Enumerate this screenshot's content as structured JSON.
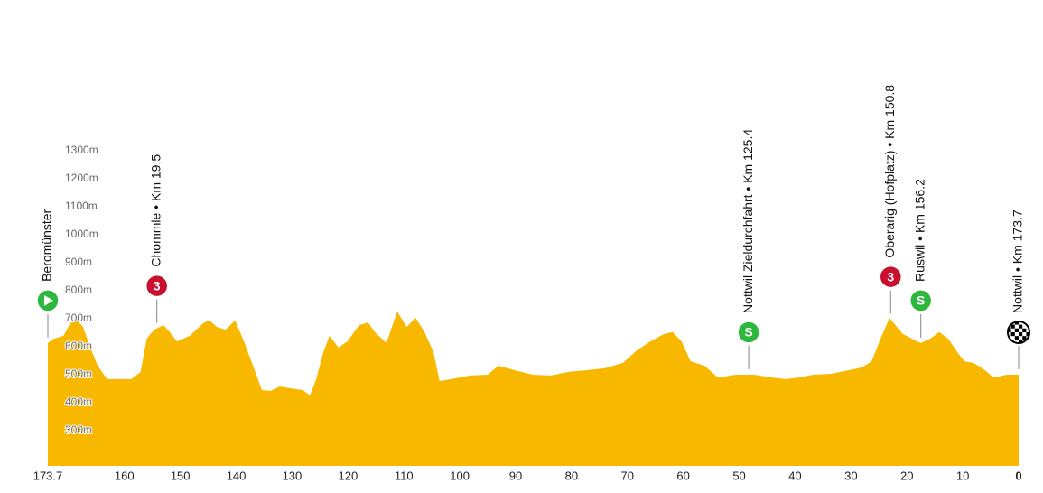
{
  "chart_data": {
    "type": "area",
    "color": "#f9b800",
    "x": [
      173.7,
      172.6,
      170.9,
      169.7,
      168.5,
      167.4,
      166.1,
      164.8,
      163.1,
      161.3,
      158.8,
      157.1,
      156.0,
      154.7,
      153.0,
      151.9,
      150.6,
      148.3,
      145.9,
      144.8,
      143.5,
      141.9,
      140.2,
      138.6,
      137.0,
      135.4,
      133.8,
      132.2,
      130.6,
      128.1,
      126.8,
      125.7,
      124.4,
      123.3,
      121.7,
      120.1,
      118.0,
      116.4,
      115.2,
      113.1,
      111.2,
      109.5,
      107.9,
      106.3,
      104.7,
      103.6,
      101.5,
      98.2,
      95.0,
      93.1,
      90.2,
      86.9,
      83.7,
      80.5,
      77.2,
      74.0,
      70.8,
      68.3,
      65.9,
      63.5,
      61.9,
      60.3,
      58.7,
      56.2,
      53.8,
      50.6,
      47.3,
      44.1,
      41.7,
      39.3,
      36.8,
      33.6,
      30.4,
      28.0,
      26.3,
      24.7,
      23.1,
      21.8,
      20.7,
      19.1,
      17.5,
      15.8,
      14.2,
      12.6,
      11.0,
      9.7,
      8.1,
      6.5,
      4.5,
      2.1,
      0
    ],
    "values": [
      613,
      629,
      639,
      684,
      694,
      671,
      597,
      532,
      484,
      484,
      484,
      510,
      629,
      661,
      677,
      652,
      619,
      639,
      684,
      694,
      671,
      661,
      694,
      619,
      532,
      445,
      442,
      458,
      452,
      445,
      426,
      484,
      581,
      639,
      597,
      619,
      677,
      687,
      652,
      613,
      726,
      671,
      703,
      652,
      581,
      477,
      484,
      497,
      500,
      532,
      516,
      500,
      497,
      510,
      516,
      523,
      542,
      587,
      619,
      645,
      652,
      619,
      548,
      532,
      490,
      500,
      500,
      490,
      484,
      490,
      500,
      503,
      516,
      526,
      548,
      629,
      703,
      671,
      645,
      629,
      613,
      629,
      652,
      629,
      581,
      548,
      542,
      523,
      490,
      500,
      500
    ],
    "xlim": [
      173.7,
      0
    ],
    "xticks": [
      173.7,
      160,
      150,
      140,
      130,
      120,
      110,
      100,
      90,
      80,
      70,
      60,
      50,
      40,
      30,
      20,
      10,
      0
    ],
    "ylim": [
      174,
      1300
    ],
    "yticks": [
      {
        "value": 300,
        "label": "300m"
      },
      {
        "value": 400,
        "label": "400m"
      },
      {
        "value": 500,
        "label": "500m"
      },
      {
        "value": 600,
        "label": "600m"
      },
      {
        "value": 700,
        "label": "700m"
      },
      {
        "value": 800,
        "label": "800m"
      },
      {
        "value": 900,
        "label": "900m"
      },
      {
        "value": 1000,
        "label": "1000m"
      },
      {
        "value": 1100,
        "label": "1100m"
      },
      {
        "value": 1200,
        "label": "1200m"
      },
      {
        "value": 1300,
        "label": "1300m"
      }
    ],
    "markers": [
      {
        "label": "Beromünster",
        "x": 173.7,
        "kind": "start",
        "color": "#2db83d"
      },
      {
        "label": "Chommle • Km 19.5",
        "x": 154.2,
        "kind": "badge",
        "badge": "3",
        "color": "#c8102e"
      },
      {
        "label": "Nottwil Zieldurchfahrt • Km 125.4",
        "x": 48.3,
        "kind": "badge",
        "badge": "S",
        "color": "#2db83d"
      },
      {
        "label": "Oberarig (Hofplatz) • Km 150.8",
        "x": 22.9,
        "kind": "badge",
        "badge": "3",
        "color": "#c8102e"
      },
      {
        "label": "Ruswil • Km 156.2",
        "x": 17.5,
        "kind": "badge",
        "badge": "S",
        "color": "#2db83d"
      },
      {
        "label": "Nottwil • Km 173.7",
        "x": 0,
        "kind": "finish",
        "color": "#000000"
      }
    ]
  }
}
